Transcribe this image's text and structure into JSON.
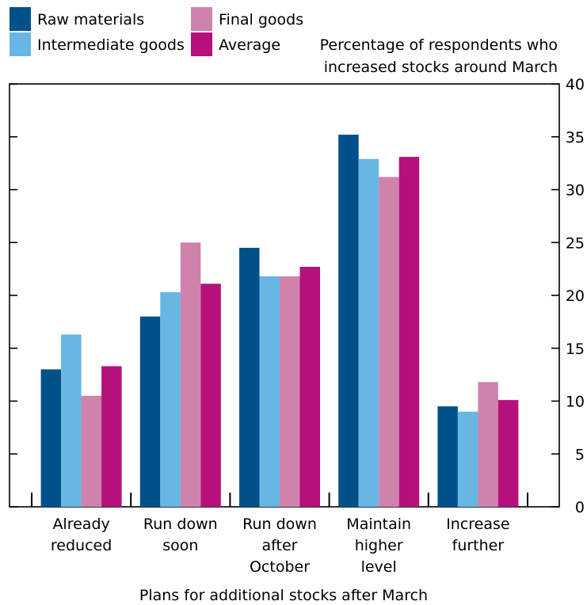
{
  "chart_data": {
    "type": "bar",
    "categories": [
      [
        "Already",
        "reduced"
      ],
      [
        "Run down",
        "soon"
      ],
      [
        "Run down",
        "after",
        "October"
      ],
      [
        "Maintain",
        "higher",
        "level"
      ],
      [
        "Increase",
        "further"
      ]
    ],
    "series": [
      {
        "name": "Raw materials",
        "color": "#00508a",
        "values": [
          13.0,
          18.0,
          24.5,
          35.2,
          9.5
        ]
      },
      {
        "name": "Intermediate goods",
        "color": "#67b6e4",
        "values": [
          16.3,
          20.3,
          21.8,
          32.9,
          9.0
        ]
      },
      {
        "name": "Final goods",
        "color": "#cf82ac",
        "values": [
          10.5,
          25.0,
          21.8,
          31.2,
          11.8
        ]
      },
      {
        "name": "Average",
        "color": "#b5117b",
        "values": [
          13.3,
          21.1,
          22.7,
          33.1,
          10.1
        ]
      }
    ],
    "ylabel": [
      "Percentage of respondents who",
      "increased stocks around March"
    ],
    "xlabel": "Plans for additional stocks after March",
    "ylim": [
      0,
      40
    ],
    "yticks": [
      0,
      5,
      10,
      15,
      20,
      25,
      30,
      35,
      40
    ],
    "yaxis_side": "right",
    "legend_position": "top-left",
    "grid": false
  }
}
